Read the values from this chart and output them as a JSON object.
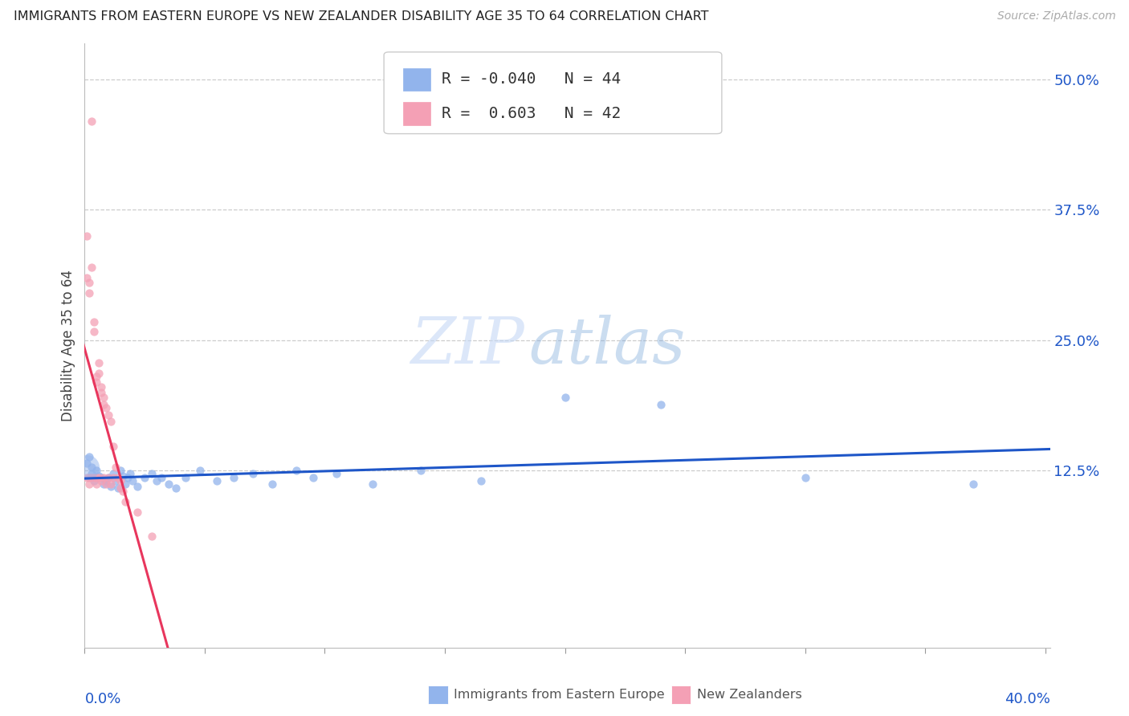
{
  "title": "IMMIGRANTS FROM EASTERN EUROPE VS NEW ZEALANDER DISABILITY AGE 35 TO 64 CORRELATION CHART",
  "source": "Source: ZipAtlas.com",
  "ylabel": "Disability Age 35 to 64",
  "legend_blue_r": "-0.040",
  "legend_blue_n": "44",
  "legend_pink_r": " 0.603",
  "legend_pink_n": "42",
  "legend_blue_label": "Immigrants from Eastern Europe",
  "legend_pink_label": "New Zealanders",
  "blue_color": "#92B4EC",
  "pink_color": "#F4A0B5",
  "blue_line_color": "#1E56C8",
  "pink_line_color": "#E8365D",
  "blue_scatter_x": [
    0.001,
    0.002,
    0.003,
    0.003,
    0.004,
    0.005,
    0.006,
    0.007,
    0.008,
    0.009,
    0.01,
    0.011,
    0.012,
    0.013,
    0.014,
    0.015,
    0.016,
    0.017,
    0.018,
    0.019,
    0.02,
    0.022,
    0.025,
    0.028,
    0.03,
    0.032,
    0.035,
    0.038,
    0.042,
    0.048,
    0.055,
    0.062,
    0.07,
    0.078,
    0.088,
    0.095,
    0.105,
    0.12,
    0.14,
    0.165,
    0.2,
    0.24,
    0.3,
    0.37
  ],
  "blue_scatter_y": [
    0.132,
    0.138,
    0.128,
    0.122,
    0.115,
    0.125,
    0.12,
    0.118,
    0.112,
    0.115,
    0.118,
    0.11,
    0.122,
    0.115,
    0.108,
    0.125,
    0.12,
    0.112,
    0.118,
    0.122,
    0.115,
    0.11,
    0.118,
    0.122,
    0.115,
    0.118,
    0.112,
    0.108,
    0.118,
    0.125,
    0.115,
    0.118,
    0.122,
    0.112,
    0.125,
    0.118,
    0.122,
    0.112,
    0.125,
    0.115,
    0.195,
    0.188,
    0.118,
    0.112
  ],
  "pink_scatter_x": [
    0.001,
    0.001,
    0.001,
    0.002,
    0.002,
    0.002,
    0.002,
    0.003,
    0.003,
    0.003,
    0.004,
    0.004,
    0.004,
    0.005,
    0.005,
    0.005,
    0.005,
    0.006,
    0.006,
    0.006,
    0.007,
    0.007,
    0.007,
    0.008,
    0.008,
    0.008,
    0.009,
    0.009,
    0.01,
    0.01,
    0.011,
    0.011,
    0.012,
    0.012,
    0.013,
    0.014,
    0.015,
    0.015,
    0.016,
    0.017,
    0.022,
    0.028
  ],
  "pink_scatter_y": [
    0.35,
    0.31,
    0.118,
    0.305,
    0.295,
    0.118,
    0.112,
    0.46,
    0.32,
    0.118,
    0.268,
    0.258,
    0.118,
    0.215,
    0.21,
    0.118,
    0.112,
    0.228,
    0.218,
    0.118,
    0.205,
    0.2,
    0.115,
    0.195,
    0.188,
    0.118,
    0.185,
    0.112,
    0.178,
    0.118,
    0.172,
    0.112,
    0.148,
    0.118,
    0.128,
    0.118,
    0.115,
    0.108,
    0.105,
    0.095,
    0.085,
    0.062
  ],
  "xlim": [
    0.0,
    0.402
  ],
  "ylim": [
    -0.045,
    0.535
  ],
  "ytick_positions": [
    0.125,
    0.25,
    0.375,
    0.5
  ],
  "ytick_labels": [
    "12.5%",
    "25.0%",
    "37.5%",
    "50.0%"
  ],
  "xtick_positions": [
    0.0,
    0.05,
    0.1,
    0.15,
    0.2,
    0.25,
    0.3,
    0.35,
    0.4
  ],
  "figsize": [
    14.06,
    8.92
  ],
  "dpi": 100
}
